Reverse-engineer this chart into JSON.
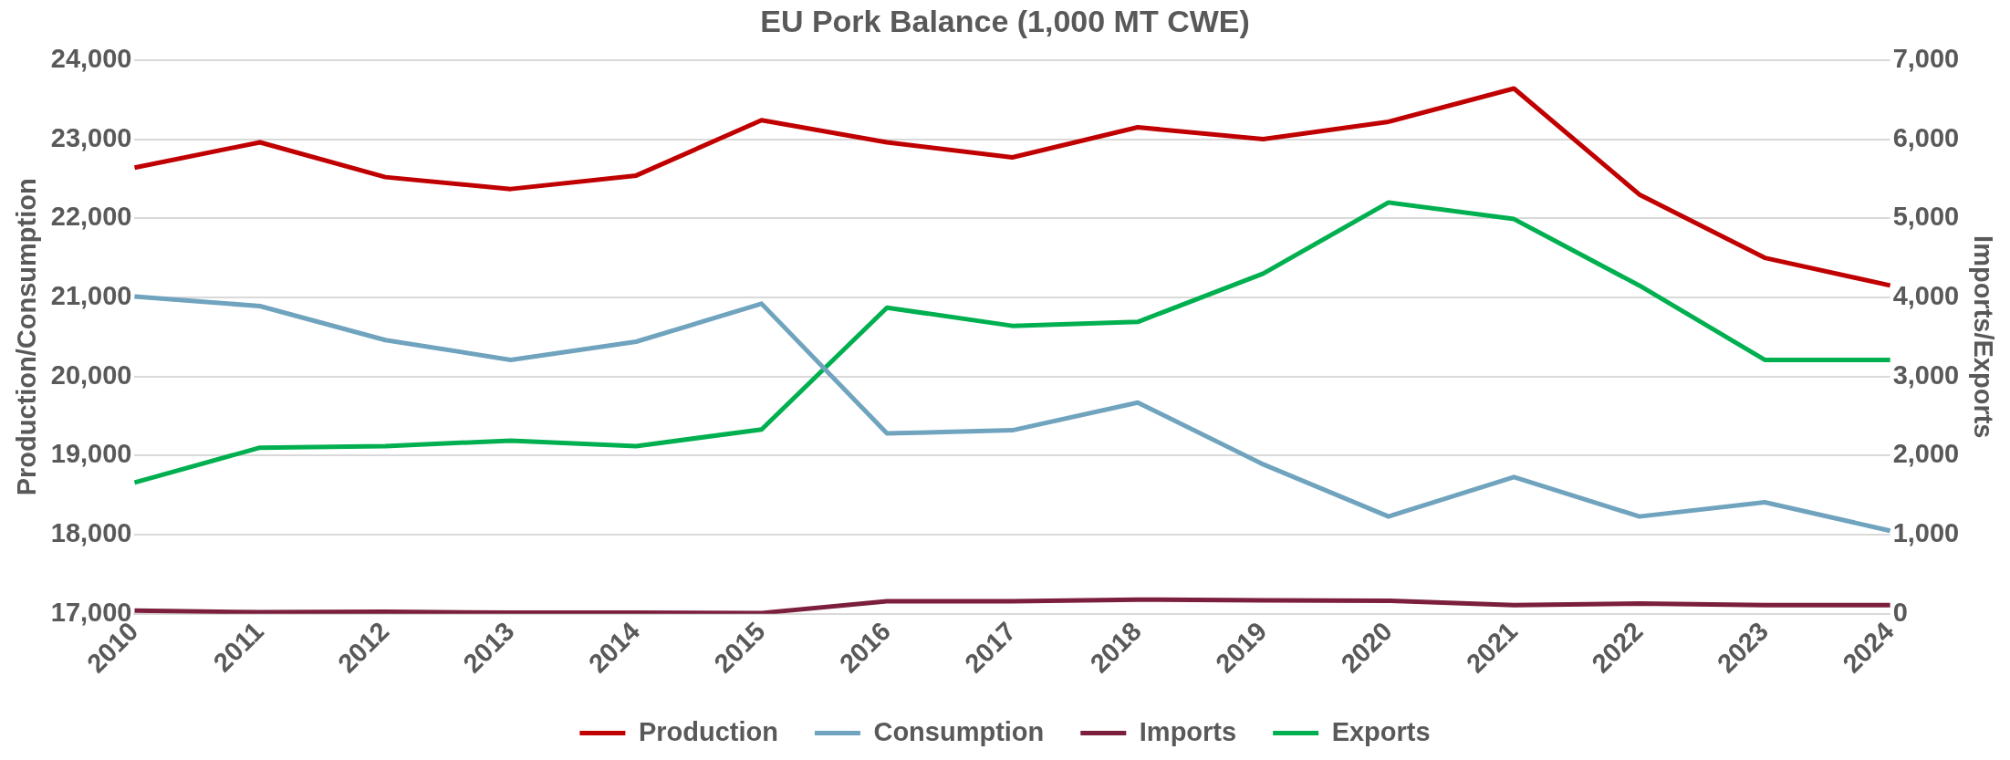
{
  "chart_data": {
    "type": "line",
    "title": "EU Pork Balance (1,000 MT CWE)",
    "ylabel": "Production/Consumption",
    "y2label": "Imports/Exports",
    "categories": [
      "2010",
      "2011",
      "2012",
      "2013",
      "2014",
      "2015",
      "2016",
      "2017",
      "2018",
      "2019",
      "2020",
      "2021",
      "2022",
      "2023",
      "2024"
    ],
    "series": [
      {
        "name": "Production",
        "color": "#c00000",
        "values": [
          22640,
          22960,
          22520,
          22370,
          22540,
          23240,
          22960,
          22770,
          23150,
          23000,
          23220,
          23640,
          22300,
          21500,
          21150
        ]
      },
      {
        "name": "Consumption",
        "color": "#6fa3be",
        "values": [
          21010,
          20890,
          20460,
          20210,
          20440,
          20920,
          19280,
          19320,
          19670,
          18890,
          18230,
          18730,
          18230,
          18410,
          18050
        ]
      },
      {
        "name": "Imports",
        "color": "#7b1f3c",
        "axis": "y2",
        "values": [
          40,
          20,
          25,
          15,
          15,
          10,
          160,
          160,
          180,
          170,
          165,
          110,
          130,
          110,
          110
        ]
      },
      {
        "name": "Exports",
        "color": "#00b050",
        "axis": "y2",
        "values": [
          1660,
          2100,
          2120,
          2190,
          2120,
          2330,
          3870,
          3640,
          3690,
          4300,
          5200,
          4990,
          4150,
          3210,
          3210
        ]
      }
    ],
    "ylim": [
      17000,
      24000
    ],
    "yticks": [
      {
        "value": 17000,
        "label": "17,000"
      },
      {
        "value": 18000,
        "label": "18,000"
      },
      {
        "value": 19000,
        "label": "19,000"
      },
      {
        "value": 20000,
        "label": "20,000"
      },
      {
        "value": 21000,
        "label": "21,000"
      },
      {
        "value": 22000,
        "label": "22,000"
      },
      {
        "value": 23000,
        "label": "23,000"
      },
      {
        "value": 24000,
        "label": "24,000"
      }
    ],
    "y2lim": [
      0,
      7000
    ],
    "y2ticks": [
      0,
      {
        "value": 1000,
        "label": "1,000"
      },
      {
        "value": 2000,
        "label": "2,000"
      },
      {
        "value": 3000,
        "label": "3,000"
      },
      {
        "value": 4000,
        "label": "4,000"
      },
      {
        "value": 5000,
        "label": "5,000"
      },
      {
        "value": 6000,
        "label": "6,000"
      },
      {
        "value": 7000,
        "label": "7,000"
      }
    ],
    "grid": "y",
    "legend": "bottom",
    "marker": "none",
    "line_style": "solid"
  }
}
